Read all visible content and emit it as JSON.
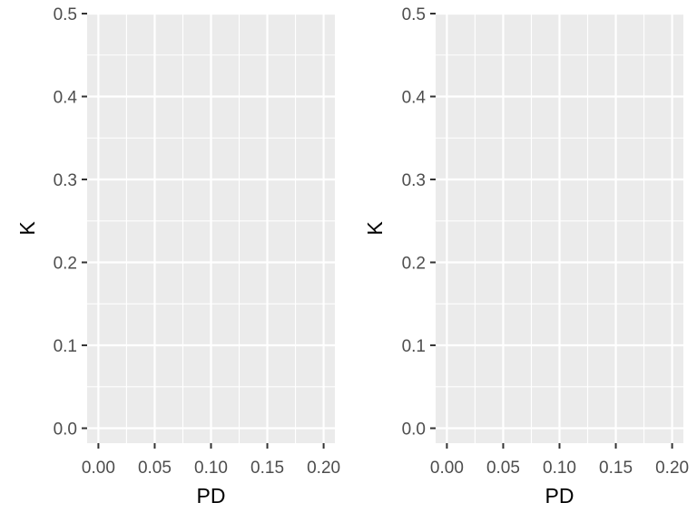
{
  "chart_data": [
    {
      "type": "scatter",
      "title": "",
      "xlabel": "PD",
      "ylabel": "K",
      "xlim": [
        -0.01,
        0.21
      ],
      "ylim": [
        -0.018,
        0.5
      ],
      "x_ticks": [
        0.0,
        0.05,
        0.1,
        0.15,
        0.2
      ],
      "x_tick_labels": [
        "0.00",
        "0.05",
        "0.10",
        "0.15",
        "0.20"
      ],
      "y_ticks": [
        0.0,
        0.1,
        0.2,
        0.3,
        0.4,
        0.5
      ],
      "y_tick_labels": [
        "0.0",
        "0.1",
        "0.2",
        "0.3",
        "0.4",
        "0.5"
      ],
      "grid": true,
      "series": [],
      "legend": "none",
      "colors": {
        "panel_background": "#ebebeb",
        "grid": "#ffffff",
        "tick_text": "#4d4d4d",
        "title_text": "#000000"
      }
    },
    {
      "type": "scatter",
      "title": "",
      "xlabel": "PD",
      "ylabel": "K",
      "xlim": [
        -0.01,
        0.21
      ],
      "ylim": [
        -0.018,
        0.5
      ],
      "x_ticks": [
        0.0,
        0.05,
        0.1,
        0.15,
        0.2
      ],
      "x_tick_labels": [
        "0.00",
        "0.05",
        "0.10",
        "0.15",
        "0.20"
      ],
      "y_ticks": [
        0.0,
        0.1,
        0.2,
        0.3,
        0.4,
        0.5
      ],
      "y_tick_labels": [
        "0.0",
        "0.1",
        "0.2",
        "0.3",
        "0.4",
        "0.5"
      ],
      "grid": true,
      "series": [],
      "legend": "none",
      "colors": {
        "panel_background": "#ebebeb",
        "grid": "#ffffff",
        "tick_text": "#4d4d4d",
        "title_text": "#000000"
      }
    }
  ]
}
